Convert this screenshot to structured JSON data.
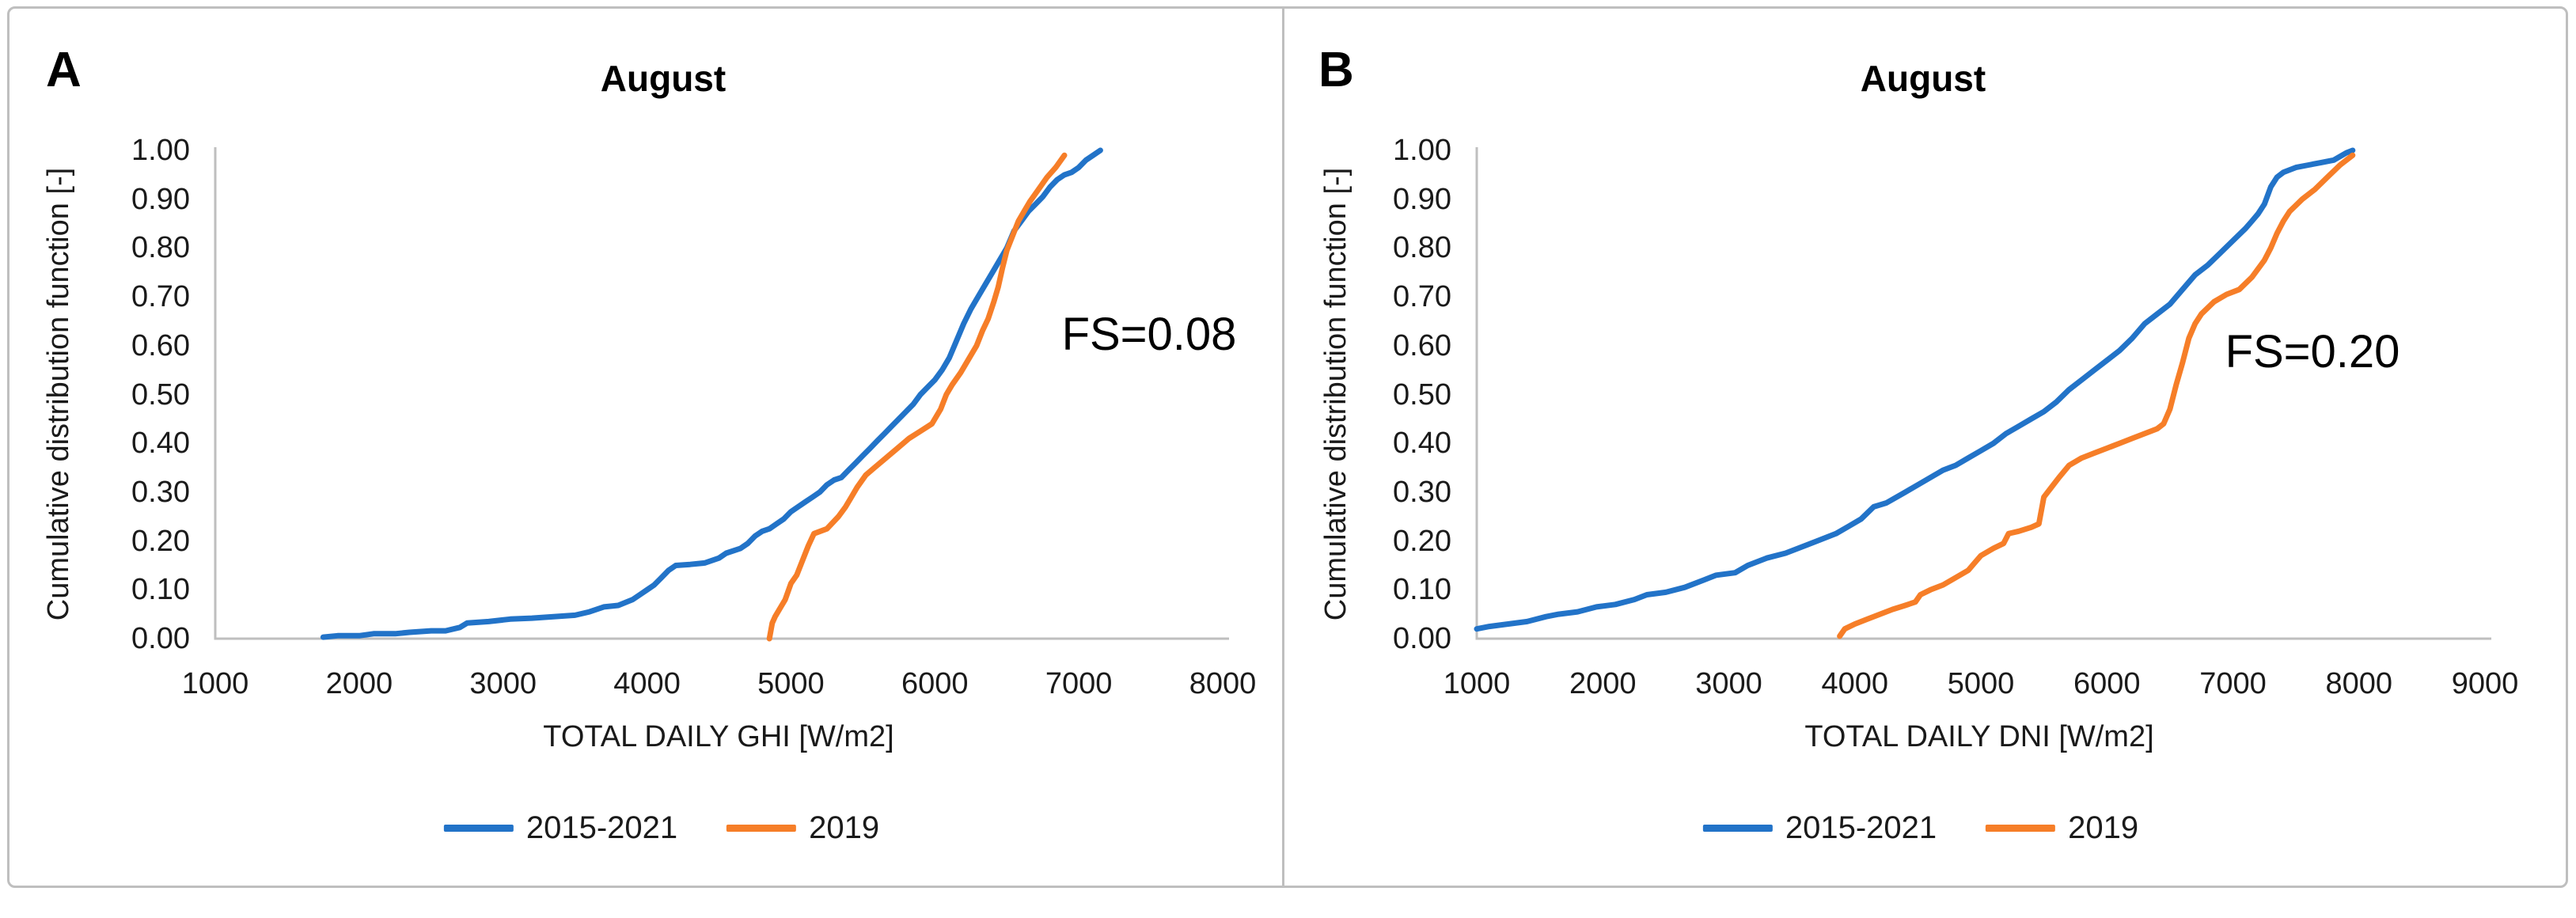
{
  "figure": {
    "background": "#ffffff",
    "border_color": "#bfbfbf",
    "axis_color": "#bfbfbf",
    "text_color": "#1a1a1a"
  },
  "panels": [
    {
      "label": "A"
    },
    {
      "label": "B"
    }
  ],
  "chart_data": [
    {
      "type": "line",
      "title": "August",
      "annotation": "FS=0.08",
      "xlabel": "TOTAL DAILY GHI [W/m2]",
      "ylabel": "Cumulative distribution function [-]",
      "xlim": [
        1000,
        8000
      ],
      "ylim": [
        0.0,
        1.0
      ],
      "grid": false,
      "legend_position": "bottom",
      "xticks": [
        1000,
        2000,
        3000,
        4000,
        5000,
        6000,
        7000,
        8000
      ],
      "yticks": [
        {
          "label": "0.00",
          "value": 0.0
        },
        {
          "label": "0.10",
          "value": 0.1
        },
        {
          "label": "0.20",
          "value": 0.2
        },
        {
          "label": "0.30",
          "value": 0.3
        },
        {
          "label": "0.40",
          "value": 0.4
        },
        {
          "label": "0.50",
          "value": 0.5
        },
        {
          "label": "0.60",
          "value": 0.6
        },
        {
          "label": "0.70",
          "value": 0.7
        },
        {
          "label": "0.80",
          "value": 0.8
        },
        {
          "label": "0.90",
          "value": 0.9
        },
        {
          "label": "1.00",
          "value": 1.0
        }
      ],
      "series": [
        {
          "name": "2015-2021",
          "color": "#2273c8",
          "points": [
            [
              1750,
              0.003
            ],
            [
              1850,
              0.006
            ],
            [
              2000,
              0.006
            ],
            [
              2100,
              0.01
            ],
            [
              2250,
              0.01
            ],
            [
              2350,
              0.013
            ],
            [
              2500,
              0.016
            ],
            [
              2600,
              0.016
            ],
            [
              2700,
              0.023
            ],
            [
              2750,
              0.032
            ],
            [
              2900,
              0.035
            ],
            [
              3050,
              0.04
            ],
            [
              3200,
              0.042
            ],
            [
              3350,
              0.045
            ],
            [
              3500,
              0.048
            ],
            [
              3600,
              0.055
            ],
            [
              3700,
              0.065
            ],
            [
              3800,
              0.068
            ],
            [
              3900,
              0.08
            ],
            [
              3950,
              0.09
            ],
            [
              4000,
              0.1
            ],
            [
              4050,
              0.11
            ],
            [
              4100,
              0.125
            ],
            [
              4150,
              0.14
            ],
            [
              4200,
              0.15
            ],
            [
              4300,
              0.152
            ],
            [
              4400,
              0.155
            ],
            [
              4500,
              0.165
            ],
            [
              4550,
              0.175
            ],
            [
              4650,
              0.185
            ],
            [
              4700,
              0.195
            ],
            [
              4750,
              0.21
            ],
            [
              4800,
              0.22
            ],
            [
              4850,
              0.225
            ],
            [
              4900,
              0.235
            ],
            [
              4950,
              0.245
            ],
            [
              5000,
              0.26
            ],
            [
              5050,
              0.27
            ],
            [
              5100,
              0.28
            ],
            [
              5150,
              0.29
            ],
            [
              5200,
              0.3
            ],
            [
              5250,
              0.315
            ],
            [
              5300,
              0.325
            ],
            [
              5350,
              0.33
            ],
            [
              5400,
              0.345
            ],
            [
              5450,
              0.36
            ],
            [
              5500,
              0.375
            ],
            [
              5550,
              0.39
            ],
            [
              5600,
              0.405
            ],
            [
              5650,
              0.42
            ],
            [
              5700,
              0.435
            ],
            [
              5750,
              0.45
            ],
            [
              5800,
              0.465
            ],
            [
              5850,
              0.48
            ],
            [
              5900,
              0.5
            ],
            [
              5950,
              0.515
            ],
            [
              6000,
              0.53
            ],
            [
              6050,
              0.55
            ],
            [
              6100,
              0.575
            ],
            [
              6150,
              0.61
            ],
            [
              6200,
              0.645
            ],
            [
              6250,
              0.675
            ],
            [
              6300,
              0.7
            ],
            [
              6350,
              0.725
            ],
            [
              6400,
              0.75
            ],
            [
              6450,
              0.775
            ],
            [
              6500,
              0.8
            ],
            [
              6550,
              0.835
            ],
            [
              6600,
              0.855
            ],
            [
              6650,
              0.875
            ],
            [
              6700,
              0.89
            ],
            [
              6750,
              0.905
            ],
            [
              6800,
              0.925
            ],
            [
              6850,
              0.94
            ],
            [
              6900,
              0.95
            ],
            [
              6950,
              0.955
            ],
            [
              7000,
              0.965
            ],
            [
              7050,
              0.98
            ],
            [
              7100,
              0.99
            ],
            [
              7150,
              1.0
            ]
          ]
        },
        {
          "name": "2019",
          "color": "#f67e28",
          "points": [
            [
              4850,
              0.0
            ],
            [
              4870,
              0.032
            ],
            [
              4890,
              0.045
            ],
            [
              4930,
              0.065
            ],
            [
              4960,
              0.08
            ],
            [
              5000,
              0.113
            ],
            [
              5040,
              0.13
            ],
            [
              5080,
              0.16
            ],
            [
              5120,
              0.19
            ],
            [
              5160,
              0.215
            ],
            [
              5250,
              0.225
            ],
            [
              5330,
              0.25
            ],
            [
              5380,
              0.27
            ],
            [
              5420,
              0.29
            ],
            [
              5460,
              0.31
            ],
            [
              5520,
              0.335
            ],
            [
              5580,
              0.35
            ],
            [
              5660,
              0.37
            ],
            [
              5740,
              0.39
            ],
            [
              5820,
              0.41
            ],
            [
              5900,
              0.425
            ],
            [
              5980,
              0.44
            ],
            [
              6040,
              0.47
            ],
            [
              6080,
              0.5
            ],
            [
              6120,
              0.52
            ],
            [
              6180,
              0.545
            ],
            [
              6240,
              0.575
            ],
            [
              6290,
              0.6
            ],
            [
              6330,
              0.63
            ],
            [
              6370,
              0.655
            ],
            [
              6410,
              0.69
            ],
            [
              6440,
              0.72
            ],
            [
              6470,
              0.76
            ],
            [
              6500,
              0.795
            ],
            [
              6540,
              0.825
            ],
            [
              6580,
              0.855
            ],
            [
              6620,
              0.875
            ],
            [
              6660,
              0.895
            ],
            [
              6720,
              0.92
            ],
            [
              6780,
              0.945
            ],
            [
              6840,
              0.965
            ],
            [
              6900,
              0.99
            ]
          ]
        }
      ]
    },
    {
      "type": "line",
      "title": "August",
      "annotation": "FS=0.20",
      "xlabel": "TOTAL DAILY DNI [W/m2]",
      "ylabel": "Cumulative distribution function [-]",
      "xlim": [
        1000,
        9000
      ],
      "ylim": [
        0.0,
        1.0
      ],
      "grid": false,
      "legend_position": "bottom",
      "xticks": [
        1000,
        2000,
        3000,
        4000,
        5000,
        6000,
        7000,
        8000,
        9000
      ],
      "yticks": [
        {
          "label": "0.00",
          "value": 0.0
        },
        {
          "label": "0.10",
          "value": 0.1
        },
        {
          "label": "0.20",
          "value": 0.2
        },
        {
          "label": "0.30",
          "value": 0.3
        },
        {
          "label": "0.40",
          "value": 0.4
        },
        {
          "label": "0.50",
          "value": 0.5
        },
        {
          "label": "0.60",
          "value": 0.6
        },
        {
          "label": "0.70",
          "value": 0.7
        },
        {
          "label": "0.80",
          "value": 0.8
        },
        {
          "label": "0.90",
          "value": 0.9
        },
        {
          "label": "1.00",
          "value": 1.0
        }
      ],
      "series": [
        {
          "name": "2015-2021",
          "color": "#2273c8",
          "points": [
            [
              1000,
              0.02
            ],
            [
              1100,
              0.025
            ],
            [
              1250,
              0.03
            ],
            [
              1400,
              0.035
            ],
            [
              1550,
              0.045
            ],
            [
              1650,
              0.05
            ],
            [
              1800,
              0.055
            ],
            [
              1950,
              0.065
            ],
            [
              2100,
              0.07
            ],
            [
              2250,
              0.08
            ],
            [
              2350,
              0.09
            ],
            [
              2500,
              0.095
            ],
            [
              2650,
              0.105
            ],
            [
              2800,
              0.12
            ],
            [
              2900,
              0.13
            ],
            [
              3050,
              0.135
            ],
            [
              3150,
              0.15
            ],
            [
              3300,
              0.165
            ],
            [
              3450,
              0.175
            ],
            [
              3550,
              0.185
            ],
            [
              3700,
              0.2
            ],
            [
              3850,
              0.215
            ],
            [
              3950,
              0.23
            ],
            [
              4050,
              0.245
            ],
            [
              4150,
              0.27
            ],
            [
              4250,
              0.278
            ],
            [
              4400,
              0.3
            ],
            [
              4500,
              0.315
            ],
            [
              4600,
              0.33
            ],
            [
              4700,
              0.345
            ],
            [
              4800,
              0.355
            ],
            [
              4900,
              0.37
            ],
            [
              5000,
              0.385
            ],
            [
              5100,
              0.4
            ],
            [
              5200,
              0.42
            ],
            [
              5300,
              0.435
            ],
            [
              5400,
              0.45
            ],
            [
              5500,
              0.465
            ],
            [
              5600,
              0.485
            ],
            [
              5700,
              0.51
            ],
            [
              5800,
              0.53
            ],
            [
              5900,
              0.55
            ],
            [
              6000,
              0.57
            ],
            [
              6100,
              0.59
            ],
            [
              6200,
              0.615
            ],
            [
              6300,
              0.645
            ],
            [
              6400,
              0.665
            ],
            [
              6500,
              0.685
            ],
            [
              6600,
              0.715
            ],
            [
              6700,
              0.745
            ],
            [
              6800,
              0.765
            ],
            [
              6900,
              0.79
            ],
            [
              7000,
              0.815
            ],
            [
              7100,
              0.84
            ],
            [
              7150,
              0.855
            ],
            [
              7200,
              0.87
            ],
            [
              7250,
              0.89
            ],
            [
              7300,
              0.925
            ],
            [
              7350,
              0.945
            ],
            [
              7400,
              0.955
            ],
            [
              7500,
              0.965
            ],
            [
              7600,
              0.97
            ],
            [
              7700,
              0.975
            ],
            [
              7800,
              0.98
            ],
            [
              7900,
              0.995
            ],
            [
              7950,
              1.0
            ]
          ]
        },
        {
          "name": "2019",
          "color": "#f67e28",
          "points": [
            [
              3880,
              0.005
            ],
            [
              3920,
              0.02
            ],
            [
              4000,
              0.03
            ],
            [
              4100,
              0.04
            ],
            [
              4200,
              0.05
            ],
            [
              4300,
              0.06
            ],
            [
              4400,
              0.068
            ],
            [
              4480,
              0.075
            ],
            [
              4520,
              0.09
            ],
            [
              4600,
              0.1
            ],
            [
              4700,
              0.11
            ],
            [
              4800,
              0.125
            ],
            [
              4900,
              0.14
            ],
            [
              4950,
              0.155
            ],
            [
              5000,
              0.17
            ],
            [
              5100,
              0.185
            ],
            [
              5180,
              0.195
            ],
            [
              5220,
              0.215
            ],
            [
              5300,
              0.22
            ],
            [
              5400,
              0.228
            ],
            [
              5460,
              0.235
            ],
            [
              5500,
              0.29
            ],
            [
              5560,
              0.31
            ],
            [
              5620,
              0.33
            ],
            [
              5700,
              0.355
            ],
            [
              5800,
              0.37
            ],
            [
              5900,
              0.38
            ],
            [
              6000,
              0.39
            ],
            [
              6100,
              0.4
            ],
            [
              6200,
              0.41
            ],
            [
              6300,
              0.42
            ],
            [
              6400,
              0.43
            ],
            [
              6450,
              0.44
            ],
            [
              6500,
              0.47
            ],
            [
              6550,
              0.52
            ],
            [
              6600,
              0.565
            ],
            [
              6650,
              0.615
            ],
            [
              6700,
              0.645
            ],
            [
              6750,
              0.665
            ],
            [
              6850,
              0.69
            ],
            [
              6950,
              0.705
            ],
            [
              7050,
              0.715
            ],
            [
              7150,
              0.74
            ],
            [
              7250,
              0.775
            ],
            [
              7300,
              0.8
            ],
            [
              7350,
              0.83
            ],
            [
              7400,
              0.855
            ],
            [
              7450,
              0.875
            ],
            [
              7550,
              0.9
            ],
            [
              7650,
              0.92
            ],
            [
              7750,
              0.945
            ],
            [
              7850,
              0.97
            ],
            [
              7950,
              0.99
            ]
          ]
        }
      ]
    }
  ]
}
